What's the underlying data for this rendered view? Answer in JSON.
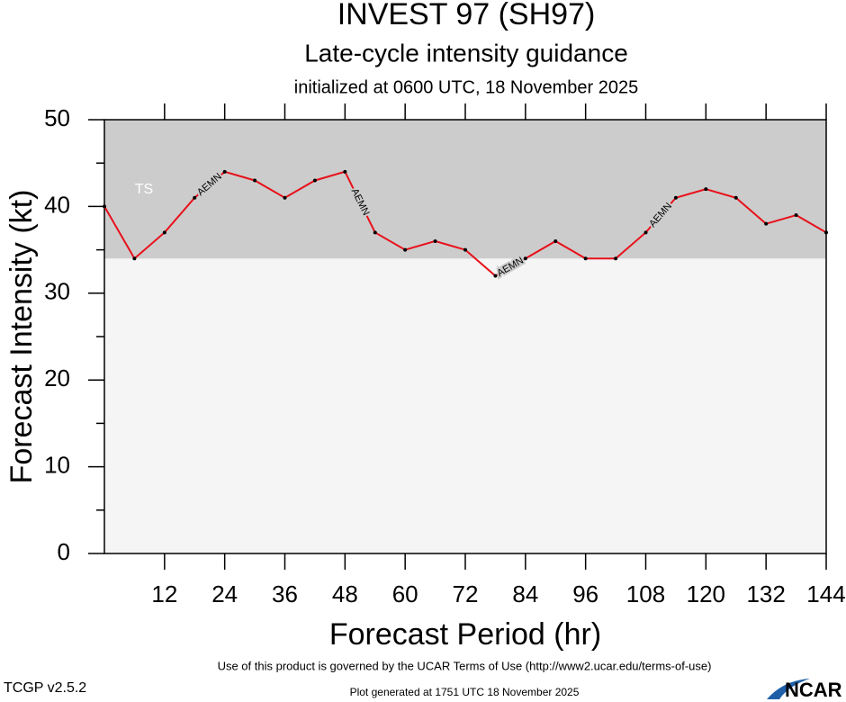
{
  "chart_data": {
    "type": "line",
    "title": "INVEST 97 (SH97)",
    "subtitle": "Late-cycle intensity guidance",
    "init_text": "initialized at 0600 UTC, 18 November 2025",
    "x_label": "Forecast Period (hr)",
    "y_label": "Forecast Intensity (kt)",
    "x": [
      0,
      6,
      12,
      18,
      24,
      30,
      36,
      42,
      48,
      54,
      60,
      66,
      72,
      78,
      84,
      90,
      96,
      102,
      108,
      114,
      120,
      126,
      132,
      138,
      144
    ],
    "series": [
      {
        "name": "AEMN",
        "color": "#e8101a",
        "values": [
          40,
          34,
          37,
          41,
          44,
          43,
          41,
          43,
          44,
          37,
          35,
          36,
          35,
          32,
          34,
          36,
          34,
          34,
          37,
          41,
          42,
          41,
          38,
          39,
          37
        ]
      }
    ],
    "xlim": [
      0,
      144
    ],
    "xticks": [
      12,
      24,
      36,
      48,
      60,
      72,
      84,
      96,
      108,
      120,
      132,
      144
    ],
    "ylim": [
      0,
      50
    ],
    "yticks": [
      0,
      10,
      20,
      30,
      40,
      50
    ],
    "threshold": {
      "label": "TS",
      "value": 34,
      "color": "#cccccc"
    },
    "background": "#f5f5f5",
    "footer": {
      "terms": "Use of this product is governed by the UCAR Terms of Use (http://www2.ucar.edu/terms-of-use)",
      "version": "TCGP v2.5.2",
      "generated": "Plot generated at 1751 UTC   18 November 2025",
      "logo": "NCAR"
    }
  }
}
